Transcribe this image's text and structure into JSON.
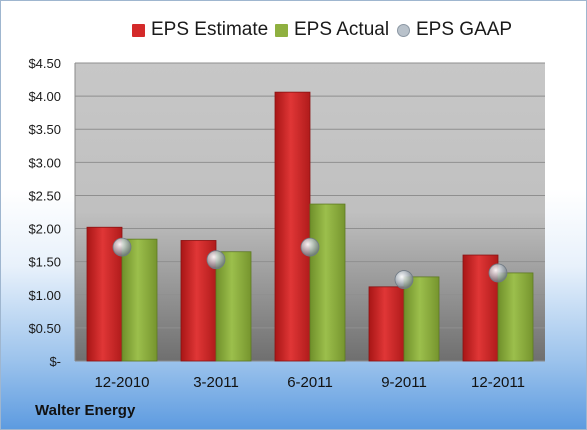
{
  "chart_data": {
    "type": "bar",
    "company": "Walter Energy",
    "categories": [
      "12-2010",
      "3-2011",
      "6-2011",
      "9-2011",
      "12-2011"
    ],
    "series": [
      {
        "name": "EPS Estimate",
        "kind": "bar",
        "color": "#d42a2a",
        "values": [
          2.02,
          1.82,
          4.06,
          1.12,
          1.6
        ]
      },
      {
        "name": "EPS Actual",
        "kind": "bar",
        "color": "#8fb040",
        "values": [
          1.84,
          1.65,
          2.37,
          1.27,
          1.33
        ]
      },
      {
        "name": "EPS GAAP",
        "kind": "marker",
        "color": "#b9c2cb",
        "values": [
          1.72,
          1.53,
          1.72,
          1.23,
          1.33
        ]
      }
    ],
    "y_ticks": [
      "$-",
      "$0.50",
      "$1.00",
      "$1.50",
      "$2.00",
      "$2.50",
      "$3.00",
      "$3.50",
      "$4.00",
      "$4.50"
    ],
    "ylim": [
      0,
      4.5
    ],
    "y_step": 0.5,
    "grid": true,
    "legend_position": "top"
  }
}
